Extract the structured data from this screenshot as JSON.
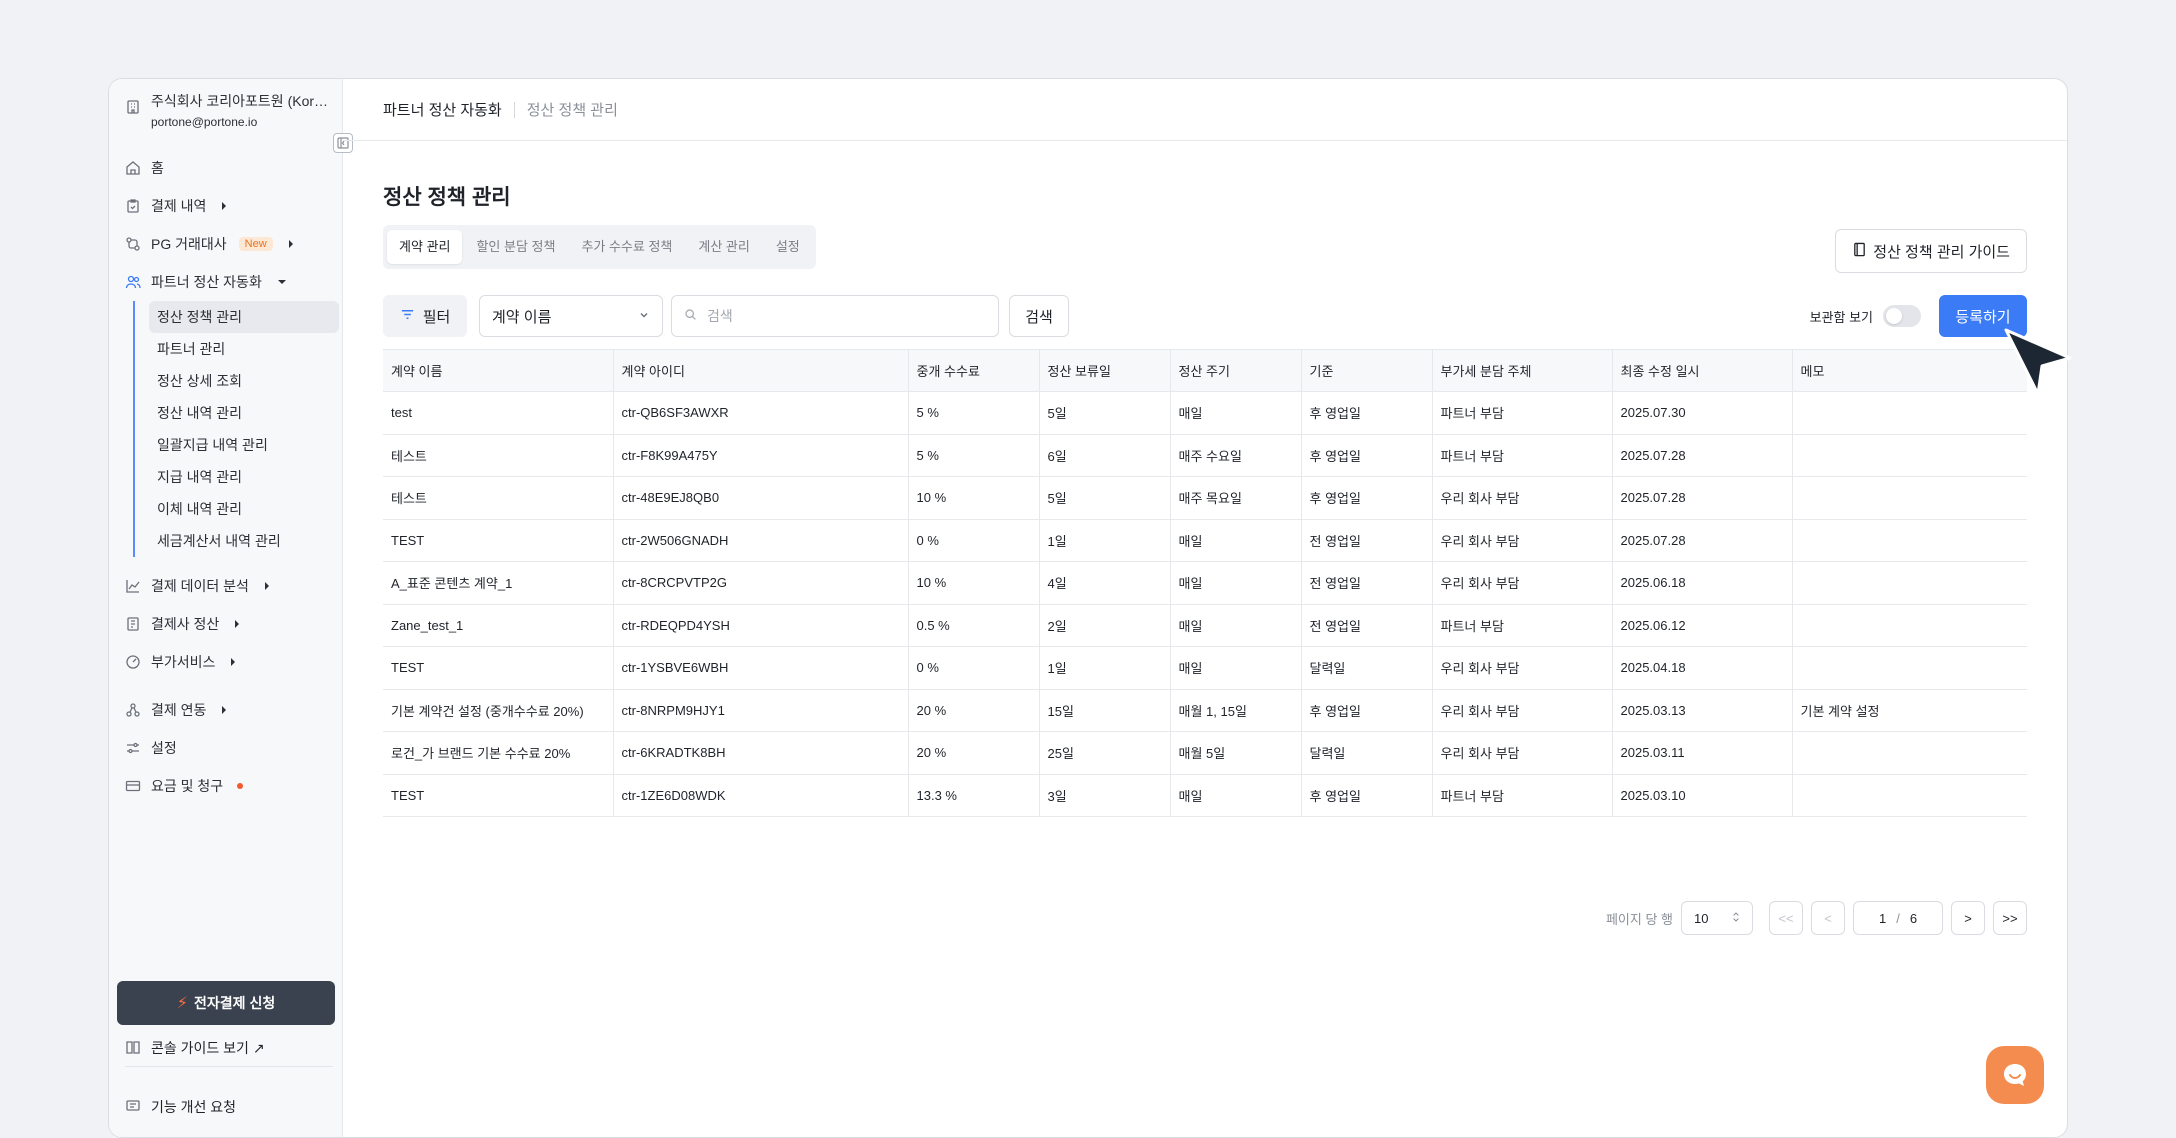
{
  "org": {
    "name": "주식회사 코리아포트원 (Korea PortOne)",
    "email": "portone@portone.io"
  },
  "nav": {
    "home": "홈",
    "payments": "결제 내역",
    "pg": "PG 거래대사",
    "pg_badge": "New",
    "partner": "파트너 정산 자동화",
    "sub_items": [
      "정산 정책 관리",
      "파트너 관리",
      "정산 상세 조회",
      "정산 내역 관리",
      "일괄지급 내역 관리",
      "지급 내역 관리",
      "이체 내역 관리",
      "세금계산서 내역 관리"
    ],
    "analytics": "결제 데이터 분석",
    "settlement": "결제사 정산",
    "addons": "부가서비스",
    "integration": "결제 연동",
    "settings": "설정",
    "billing": "요금 및 청구"
  },
  "sidebar_bottom": {
    "apply": "전자결제 신청",
    "guide": "콘솔 가이드 보기 ↗",
    "feedback": "기능 개선 요청"
  },
  "breadcrumb": {
    "parent": "파트너 정산 자동화",
    "current": "정산 정책 관리"
  },
  "page": {
    "title": "정산 정책 관리",
    "guide_button": "정산 정책 관리 가이드"
  },
  "tabs": [
    "계약 관리",
    "할인 분담 정책",
    "추가 수수료 정책",
    "계산 관리",
    "설정"
  ],
  "toolbar": {
    "filter": "필터",
    "select_value": "계약 이름",
    "search_placeholder": "검색",
    "search_button": "검색",
    "archive_label": "보관함 보기",
    "register_button": "등록하기"
  },
  "table": {
    "headers": [
      "계약 이름",
      "계약 아이디",
      "중개 수수료",
      "정산 보류일",
      "정산 주기",
      "기준",
      "부가세 분담 주체",
      "최종 수정 일시",
      "메모"
    ],
    "rows": [
      [
        "test",
        "ctr-QB6SF3AWXR",
        "5 %",
        "5일",
        "매일",
        "후 영업일",
        "파트너 부담",
        "2025.07.30",
        ""
      ],
      [
        "테스트",
        "ctr-F8K99A475Y",
        "5 %",
        "6일",
        "매주 수요일",
        "후 영업일",
        "파트너 부담",
        "2025.07.28",
        ""
      ],
      [
        "테스트",
        "ctr-48E9EJ8QB0",
        "10 %",
        "5일",
        "매주 목요일",
        "후 영업일",
        "우리 회사 부담",
        "2025.07.28",
        ""
      ],
      [
        "TEST",
        "ctr-2W506GNADH",
        "0 %",
        "1일",
        "매일",
        "전 영업일",
        "우리 회사 부담",
        "2025.07.28",
        ""
      ],
      [
        "A_표준 콘텐츠 계약_1",
        "ctr-8CRCPVTP2G",
        "10 %",
        "4일",
        "매일",
        "전 영업일",
        "우리 회사 부담",
        "2025.06.18",
        ""
      ],
      [
        "Zane_test_1",
        "ctr-RDEQPD4YSH",
        "0.5 %",
        "2일",
        "매일",
        "전 영업일",
        "파트너 부담",
        "2025.06.12",
        ""
      ],
      [
        "TEST",
        "ctr-1YSBVE6WBH",
        "0 %",
        "1일",
        "매일",
        "달력일",
        "우리 회사 부담",
        "2025.04.18",
        ""
      ],
      [
        "기본 계약건 설정 (중개수수료 20%)",
        "ctr-8NRPM9HJY1",
        "20 %",
        "15일",
        "매월 1, 15일",
        "후 영업일",
        "우리 회사 부담",
        "2025.03.13",
        "기본 계약 설정"
      ],
      [
        "로건_가 브랜드 기본 수수료 20%",
        "ctr-6KRADTK8BH",
        "20 %",
        "25일",
        "매월 5일",
        "달력일",
        "우리 회사 부담",
        "2025.03.11",
        ""
      ],
      [
        "TEST",
        "ctr-1ZE6D08WDK",
        "13.3 %",
        "3일",
        "매일",
        "후 영업일",
        "파트너 부담",
        "2025.03.10",
        ""
      ]
    ]
  },
  "pagination": {
    "rows_label": "페이지 당 행",
    "rows_value": "10",
    "current": "1",
    "total": "6",
    "first": "<<",
    "prev": "<",
    "next": ">",
    "last": ">>"
  },
  "colors": {
    "primary": "#3b7bf6",
    "dark_button": "#3a4250",
    "accent_orange": "#f58c4f"
  }
}
